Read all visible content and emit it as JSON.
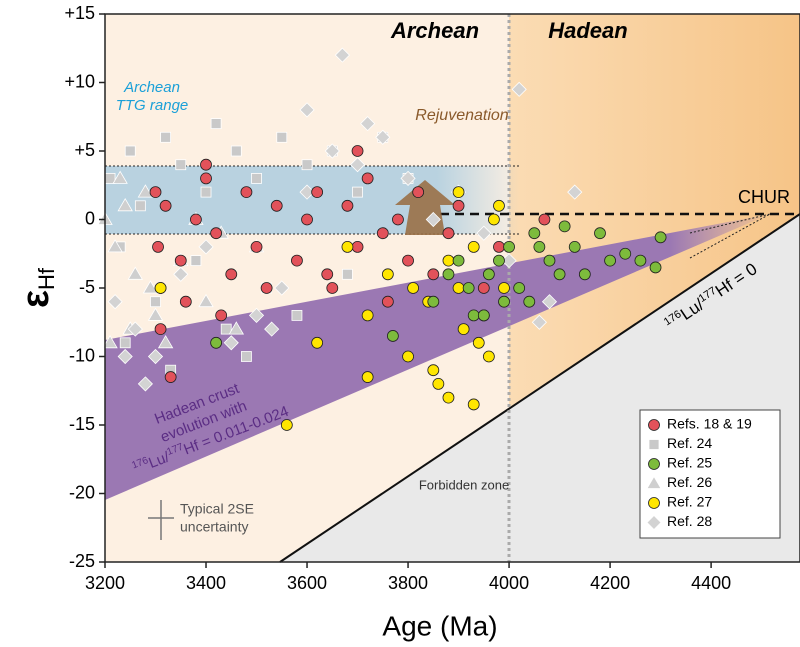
{
  "chart_data": {
    "type": "scatter",
    "x_label": "Age (Ma)",
    "y_label": {
      "symbol": "ε",
      "sub": "Hf"
    },
    "xlim": [
      3200,
      4576
    ],
    "ylim": [
      -25,
      15
    ],
    "xticks": [
      3200,
      3400,
      3600,
      3800,
      4000,
      4200,
      4400
    ],
    "yticks": [
      {
        "value": 15,
        "label": "+15"
      },
      {
        "value": 10,
        "label": "+10"
      },
      {
        "value": 5,
        "label": "+5"
      },
      0,
      -5,
      -10,
      -15,
      -20,
      -25
    ],
    "legend": "lower right",
    "annotations": {
      "archean": "Archean",
      "hadean": "Hadean",
      "ttg": [
        "Archean",
        "TTG range"
      ],
      "rejuvenation": "Rejuvenation",
      "chur": "CHUR",
      "crust": [
        "Hadean crust",
        "evolution with"
      ],
      "crust_ratio": {
        "sup1": "176",
        "a": "Lu/",
        "sup2": "177",
        "b": "Hf = 0.011-0.024"
      },
      "zero_ratio": {
        "sup1": "176",
        "a": "Lu/",
        "sup2": "177",
        "b": "Hf = 0"
      },
      "forbidden": "Forbidden zone",
      "uncertainty": [
        "Typical 2SE",
        "uncertainty"
      ]
    },
    "series": [
      {
        "name": "Refs. 18 & 19",
        "marker": "circle",
        "color": "#e2525a",
        "x": [
          3300,
          3305,
          3310,
          3320,
          3350,
          3380,
          3400,
          3420,
          3450,
          3480,
          3500,
          3540,
          3580,
          3600,
          3620,
          3650,
          3680,
          3700,
          3720,
          3750,
          3780,
          3800,
          3820,
          3850,
          3880,
          3900,
          3950,
          3980,
          4070,
          3310,
          3360,
          3430,
          3520,
          3640,
          3760,
          3400,
          3330,
          3700
        ],
        "values": [
          2,
          -2,
          -5,
          1,
          -3,
          0,
          3,
          -1,
          -4,
          2,
          -2,
          1,
          -3,
          0,
          2,
          -5,
          1,
          -2,
          3,
          -1,
          0,
          -3,
          2,
          -4,
          -1,
          1,
          -5,
          -2,
          0,
          -8,
          -6,
          -7,
          -5,
          -4,
          -6,
          4,
          -11.5,
          5
        ]
      },
      {
        "name": "Ref. 24",
        "marker": "square",
        "color": "#c9c9c9",
        "x": [
          3210,
          3230,
          3250,
          3270,
          3300,
          3320,
          3350,
          3380,
          3400,
          3420,
          3440,
          3460,
          3500,
          3520,
          3550,
          3600,
          3650,
          3700,
          3750,
          3800,
          3240,
          3330,
          3480,
          3580,
          3680
        ],
        "values": [
          3,
          -2,
          5,
          1,
          -6,
          6,
          4,
          -3,
          2,
          7,
          -8,
          5,
          3,
          -5,
          6,
          4,
          5,
          2,
          6,
          3,
          -9,
          -11,
          -10,
          -7,
          -4
        ]
      },
      {
        "name": "Ref. 25",
        "marker": "circle",
        "color": "#7dbb3c",
        "x": [
          3770,
          3850,
          3900,
          3930,
          3960,
          3990,
          4000,
          4020,
          4050,
          4080,
          4100,
          4130,
          4150,
          4180,
          4200,
          4230,
          4260,
          4290,
          3950,
          3920,
          3880,
          4040,
          4110,
          4060,
          3980,
          3420,
          4300
        ],
        "values": [
          -8.5,
          -6,
          -3,
          -7,
          -4,
          -6,
          -2,
          -5,
          -1,
          -3,
          -4,
          -2,
          -4,
          -1,
          -3,
          -2.5,
          -3,
          -3.5,
          -7,
          -5,
          -4,
          -6,
          -0.5,
          -2,
          -3,
          -9,
          -1.3
        ]
      },
      {
        "name": "Ref. 26",
        "marker": "triangle",
        "color": "#cfcfcf",
        "x": [
          3200,
          3220,
          3240,
          3260,
          3280,
          3300,
          3320,
          3350,
          3380,
          3400,
          3430,
          3460,
          3500,
          3210,
          3250,
          3290,
          3230
        ],
        "values": [
          0,
          -2,
          1,
          -4,
          2,
          -7,
          -9,
          -3,
          0,
          -6,
          -1,
          -8,
          -2,
          -9,
          -8,
          -5,
          3
        ]
      },
      {
        "name": "Ref. 27",
        "marker": "circle",
        "color": "#ffe600",
        "x": [
          3310,
          3560,
          3620,
          3680,
          3720,
          3760,
          3800,
          3840,
          3860,
          3880,
          3900,
          3910,
          3930,
          3950,
          3970,
          3980,
          3990,
          3930,
          3880,
          3850,
          3960,
          3810,
          3720,
          3900,
          3940
        ],
        "values": [
          -5,
          -15,
          -9,
          -2,
          -7,
          -4,
          -10,
          -6,
          -12,
          -3,
          -5,
          -8,
          -2,
          -7,
          0,
          1,
          -5,
          -13.5,
          -13,
          -11,
          -10,
          -5,
          -11.5,
          2,
          -9
        ]
      },
      {
        "name": "Ref. 28",
        "marker": "diamond",
        "color": "#d3d3d3",
        "x": [
          3220,
          3260,
          3300,
          3350,
          3400,
          3450,
          3500,
          3550,
          3600,
          3650,
          3670,
          3700,
          3750,
          3800,
          3850,
          3900,
          3950,
          4000,
          4060,
          4080,
          4130,
          4020,
          3280,
          3240,
          3720,
          3600,
          3530
        ],
        "values": [
          -6,
          -8,
          -10,
          -4,
          -2,
          -9,
          -7,
          -5,
          2,
          5,
          12,
          4,
          6,
          3,
          0,
          2,
          -1,
          -3,
          -7.5,
          -6,
          2,
          9.5,
          -12,
          -10,
          7,
          8,
          -8
        ]
      }
    ]
  }
}
